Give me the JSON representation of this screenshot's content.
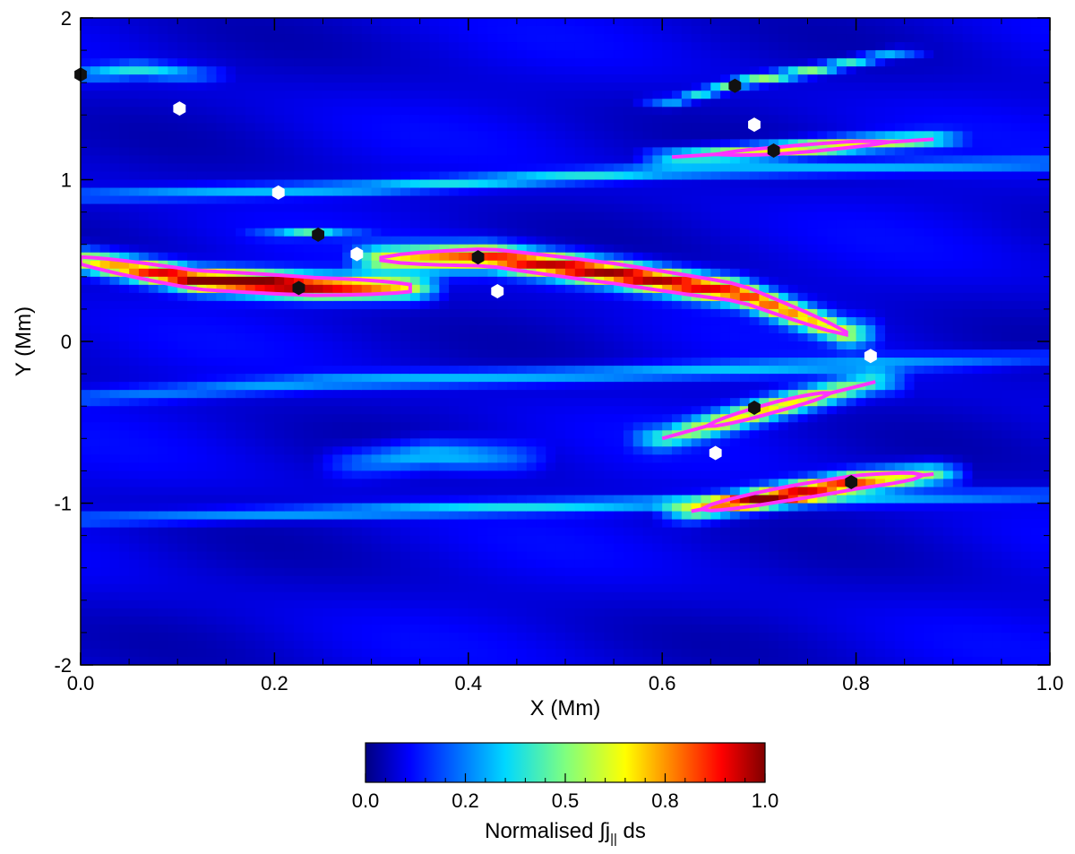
{
  "chart_data": {
    "type": "heatmap",
    "title": "",
    "xlabel": "X (Mm)",
    "ylabel": "Y (Mm)",
    "xlim": [
      0.0,
      1.0
    ],
    "ylim": [
      -2,
      2
    ],
    "x_ticks": [
      {
        "value": 0.0,
        "label": "0.0"
      },
      {
        "value": 0.2,
        "label": "0.2"
      },
      {
        "value": 0.4,
        "label": "0.4"
      },
      {
        "value": 0.6,
        "label": "0.6"
      },
      {
        "value": 0.8,
        "label": "0.8"
      },
      {
        "value": 1.0,
        "label": "1.0"
      }
    ],
    "y_ticks": [
      {
        "value": -2,
        "label": "-2"
      },
      {
        "value": -1,
        "label": "-1"
      },
      {
        "value": 0,
        "label": "0"
      },
      {
        "value": 1,
        "label": "1"
      },
      {
        "value": 2,
        "label": "2"
      }
    ],
    "x_minor_step": 0.05,
    "y_minor_step": 0.2,
    "grid": false,
    "colormap": "jet",
    "colorbar": {
      "label_main": "Normalised ∫j",
      "label_sub": "||",
      "label_end": " ds",
      "range": [
        0.0,
        1.0
      ],
      "ticks": [
        {
          "value": 0.0,
          "label": "0.0"
        },
        {
          "value": 0.25,
          "label": "0.2"
        },
        {
          "value": 0.5,
          "label": "0.5"
        },
        {
          "value": 0.75,
          "label": "0.8"
        },
        {
          "value": 1.0,
          "label": "1.0"
        }
      ],
      "placement": "bottom"
    },
    "background_level": 0.08,
    "features": [
      {
        "name": "band-left-red",
        "x0": 0.0,
        "x1": 0.34,
        "path": [
          [
            0.0,
            0.5
          ],
          [
            0.12,
            0.38
          ],
          [
            0.24,
            0.34
          ],
          [
            0.34,
            0.33
          ]
        ],
        "width": 0.18,
        "peak": 1.0
      },
      {
        "name": "band-middle",
        "x0": 0.31,
        "x1": 0.79,
        "path": [
          [
            0.31,
            0.51
          ],
          [
            0.42,
            0.52
          ],
          [
            0.55,
            0.42
          ],
          [
            0.68,
            0.3
          ],
          [
            0.79,
            0.05
          ]
        ],
        "width": 0.2,
        "peak": 0.92
      },
      {
        "name": "band-lower",
        "x0": 0.6,
        "x1": 0.82,
        "path": [
          [
            0.6,
            -0.6
          ],
          [
            0.66,
            -0.5
          ],
          [
            0.72,
            -0.4
          ],
          [
            0.82,
            -0.25
          ]
        ],
        "width": 0.18,
        "peak": 0.6
      },
      {
        "name": "band-bottom",
        "x0": 0.63,
        "x1": 0.88,
        "path": [
          [
            0.63,
            -1.05
          ],
          [
            0.72,
            -0.95
          ],
          [
            0.8,
            -0.87
          ],
          [
            0.88,
            -0.82
          ]
        ],
        "width": 0.16,
        "peak": 0.82
      },
      {
        "name": "band-top",
        "x0": 0.61,
        "x1": 0.84,
        "path": [
          [
            0.61,
            1.48
          ],
          [
            0.68,
            1.6
          ],
          [
            0.76,
            1.68
          ],
          [
            0.84,
            1.78
          ]
        ],
        "width": 0.08,
        "peak": 0.45
      },
      {
        "name": "band-upper",
        "x0": 0.61,
        "x1": 0.88,
        "path": [
          [
            0.61,
            1.14
          ],
          [
            0.72,
            1.18
          ],
          [
            0.8,
            1.22
          ],
          [
            0.88,
            1.25
          ]
        ],
        "width": 0.12,
        "peak": 0.62
      },
      {
        "name": "blob-small",
        "x0": 0.2,
        "x1": 0.27,
        "path": [
          [
            0.2,
            0.66
          ],
          [
            0.24,
            0.67
          ],
          [
            0.27,
            0.66
          ]
        ],
        "width": 0.06,
        "peak": 0.35
      },
      {
        "name": "cyan-ridge-1",
        "x0": 0.0,
        "x1": 1.0,
        "path": [
          [
            0.0,
            0.9
          ],
          [
            0.3,
            0.95
          ],
          [
            0.6,
            1.05
          ],
          [
            1.0,
            1.1
          ]
        ],
        "width": 0.1,
        "peak": 0.3
      },
      {
        "name": "cyan-ridge-2",
        "x0": 0.0,
        "x1": 1.0,
        "path": [
          [
            0.0,
            -1.1
          ],
          [
            0.3,
            -1.05
          ],
          [
            0.6,
            -1.0
          ],
          [
            1.0,
            -0.95
          ]
        ],
        "width": 0.1,
        "peak": 0.28
      },
      {
        "name": "cyan-ridge-3",
        "x0": 0.0,
        "x1": 1.0,
        "path": [
          [
            0.0,
            -0.35
          ],
          [
            0.25,
            -0.25
          ],
          [
            0.55,
            -0.2
          ],
          [
            1.0,
            -0.1
          ]
        ],
        "width": 0.12,
        "peak": 0.25
      },
      {
        "name": "cyan-blob-topleft",
        "x0": 0.0,
        "x1": 0.12,
        "path": [
          [
            0.0,
            1.65
          ],
          [
            0.06,
            1.68
          ],
          [
            0.12,
            1.65
          ]
        ],
        "width": 0.12,
        "peak": 0.3
      },
      {
        "name": "cyan-blob-mid",
        "x0": 0.28,
        "x1": 0.45,
        "path": [
          [
            0.28,
            -0.75
          ],
          [
            0.36,
            -0.7
          ],
          [
            0.45,
            -0.72
          ]
        ],
        "width": 0.22,
        "peak": 0.28
      }
    ],
    "black_points": [
      {
        "x": 0.0,
        "y": 1.65
      },
      {
        "x": 0.225,
        "y": 0.33
      },
      {
        "x": 0.245,
        "y": 0.66
      },
      {
        "x": 0.41,
        "y": 0.52
      },
      {
        "x": 0.675,
        "y": 1.58
      },
      {
        "x": 0.715,
        "y": 1.18
      },
      {
        "x": 0.695,
        "y": -0.41
      },
      {
        "x": 0.795,
        "y": -0.87
      }
    ],
    "white_points": [
      {
        "x": 0.102,
        "y": 1.44
      },
      {
        "x": 0.204,
        "y": 0.92
      },
      {
        "x": 0.285,
        "y": 0.54
      },
      {
        "x": 0.43,
        "y": 0.31
      },
      {
        "x": 0.695,
        "y": 1.34
      },
      {
        "x": 0.815,
        "y": -0.09
      },
      {
        "x": 0.655,
        "y": -0.69
      }
    ],
    "contour_color": "#ff33ff",
    "contour_level": 0.5
  }
}
